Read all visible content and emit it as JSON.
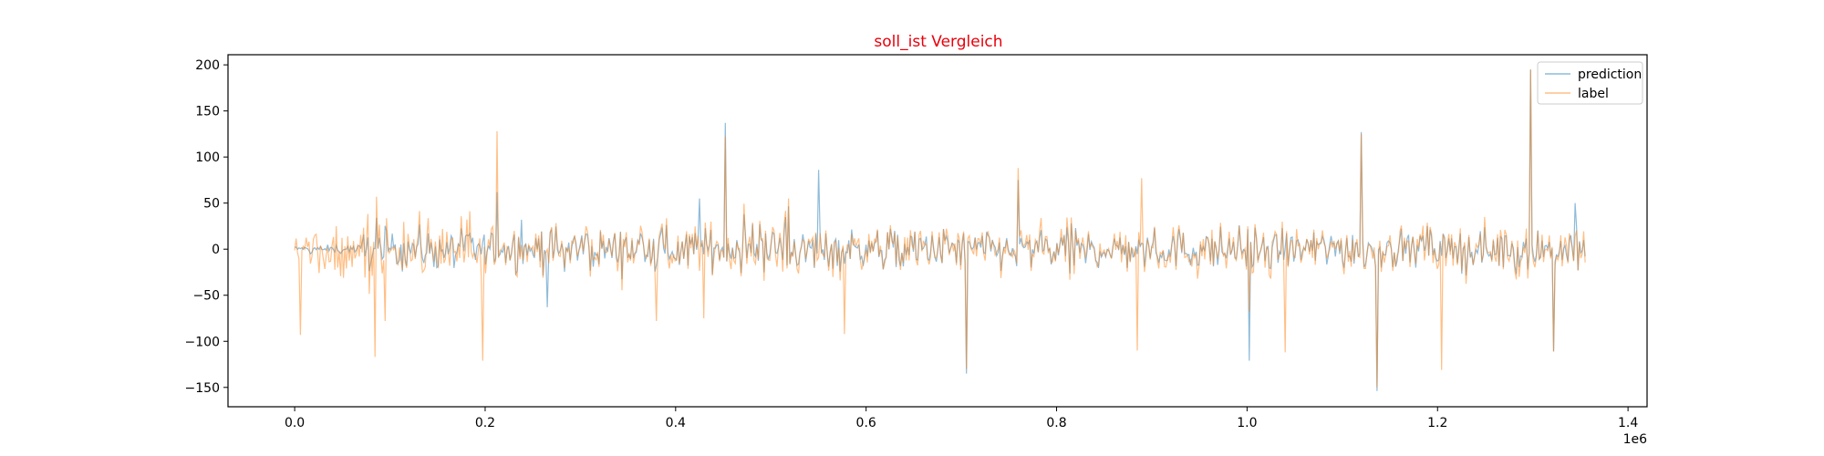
{
  "chart_data": {
    "type": "line",
    "title": "soll_ist Vergleich",
    "title_color": "#e8000b",
    "xlabel": "",
    "ylabel": "",
    "x_offset_label": "1e6",
    "xlim": [
      -70000,
      1420000
    ],
    "ylim": [
      -171,
      211
    ],
    "x_ticks": [
      0.0,
      0.2,
      0.4,
      0.6,
      0.8,
      1.0,
      1.2,
      1.4
    ],
    "x_tick_labels": [
      "0.0",
      "0.2",
      "0.4",
      "0.6",
      "0.8",
      "1.0",
      "1.2",
      "1.4"
    ],
    "y_ticks": [
      -150,
      -100,
      -50,
      0,
      50,
      100,
      150,
      200
    ],
    "y_tick_labels": [
      "−150",
      "−100",
      "−50",
      "0",
      "50",
      "100",
      "150",
      "200"
    ],
    "grid": false,
    "legend_position": "top-right",
    "x_range": [
      0,
      1355000
    ],
    "n_points": 900,
    "series": [
      {
        "name": "prediction",
        "color": "#1f77b4",
        "alpha": 0.5,
        "spikes": [
          [
            212000,
            62
          ],
          [
            238000,
            32
          ],
          [
            452000,
            137
          ],
          [
            550000,
            86
          ],
          [
            705000,
            -135
          ],
          [
            760000,
            75
          ],
          [
            1003000,
            -121
          ],
          [
            1120000,
            127
          ],
          [
            1137000,
            -154
          ],
          [
            1298000,
            195
          ],
          [
            1322000,
            -111
          ],
          [
            1345000,
            50
          ],
          [
            265000,
            -63
          ],
          [
            425000,
            55
          ]
        ]
      },
      {
        "name": "label",
        "color": "#ff7f0e",
        "alpha": 0.5,
        "spikes": [
          [
            6000,
            -93
          ],
          [
            85000,
            -117
          ],
          [
            95000,
            -78
          ],
          [
            198000,
            -121
          ],
          [
            212000,
            128
          ],
          [
            380000,
            -78
          ],
          [
            430000,
            -75
          ],
          [
            452000,
            122
          ],
          [
            577000,
            -92
          ],
          [
            705000,
            -130
          ],
          [
            760000,
            88
          ],
          [
            885000,
            -110
          ],
          [
            890000,
            77
          ],
          [
            1003000,
            -68
          ],
          [
            1040000,
            -112
          ],
          [
            1120000,
            125
          ],
          [
            1137000,
            -150
          ],
          [
            1205000,
            -131
          ],
          [
            1298000,
            195
          ],
          [
            1322000,
            -111
          ]
        ]
      }
    ]
  }
}
